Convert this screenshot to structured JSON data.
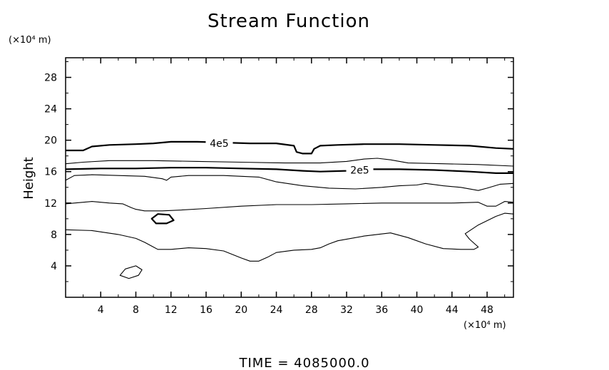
{
  "chart_data": {
    "type": "contour",
    "title": "Stream Function",
    "xlabel": "",
    "ylabel": "Height",
    "x_unit": "(×10⁴ m)",
    "y_unit": "(×10⁴ m)",
    "xlim": [
      0,
      51
    ],
    "ylim": [
      0,
      30.5
    ],
    "x_ticks": [
      4,
      8,
      12,
      16,
      20,
      24,
      28,
      32,
      36,
      40,
      44,
      48
    ],
    "y_ticks": [
      4,
      8,
      12,
      16,
      20,
      24,
      28
    ],
    "grid": false,
    "footer": "TIME  =  4085000.0",
    "contour_labels": [
      {
        "text": "4e5",
        "x": 17.5,
        "y": 19.6
      },
      {
        "text": "2e5",
        "x": 33.5,
        "y": 16.2
      }
    ],
    "contours": [
      {
        "name": "",
        "bold": true,
        "points": [
          [
            0,
            18.7
          ],
          [
            2,
            18.7
          ],
          [
            3,
            19.2
          ],
          [
            5,
            19.4
          ],
          [
            8,
            19.5
          ],
          [
            10,
            19.6
          ],
          [
            12,
            19.8
          ],
          [
            15,
            19.8
          ],
          [
            18,
            19.7
          ],
          [
            21,
            19.6
          ],
          [
            24,
            19.6
          ],
          [
            26,
            19.3
          ],
          [
            26.3,
            18.5
          ],
          [
            27,
            18.3
          ],
          [
            28,
            18.3
          ],
          [
            28.3,
            18.9
          ],
          [
            29,
            19.3
          ],
          [
            31,
            19.4
          ],
          [
            34,
            19.5
          ],
          [
            38,
            19.5
          ],
          [
            42,
            19.4
          ],
          [
            46,
            19.3
          ],
          [
            49,
            19.0
          ],
          [
            51,
            18.9
          ]
        ]
      },
      {
        "name": "",
        "bold": false,
        "points": [
          [
            0,
            17.0
          ],
          [
            2,
            17.2
          ],
          [
            5,
            17.4
          ],
          [
            10,
            17.4
          ],
          [
            15,
            17.3
          ],
          [
            20,
            17.2
          ],
          [
            25,
            17.1
          ],
          [
            29,
            17.1
          ],
          [
            32,
            17.3
          ],
          [
            34,
            17.6
          ],
          [
            35.5,
            17.7
          ],
          [
            37,
            17.5
          ],
          [
            39,
            17.1
          ],
          [
            43,
            17.0
          ],
          [
            47,
            16.9
          ],
          [
            51,
            16.7
          ]
        ]
      },
      {
        "name": "",
        "bold": true,
        "points": [
          [
            0,
            16.3
          ],
          [
            4,
            16.4
          ],
          [
            8,
            16.4
          ],
          [
            12,
            16.5
          ],
          [
            16,
            16.5
          ],
          [
            20,
            16.4
          ],
          [
            24,
            16.3
          ],
          [
            27,
            16.1
          ],
          [
            29,
            16.0
          ],
          [
            32,
            16.1
          ],
          [
            35,
            16.3
          ],
          [
            38,
            16.3
          ],
          [
            42,
            16.2
          ],
          [
            46,
            16.0
          ],
          [
            49,
            15.8
          ],
          [
            51,
            15.8
          ]
        ]
      },
      {
        "name": "",
        "bold": false,
        "points": [
          [
            0,
            14.9
          ],
          [
            1,
            15.5
          ],
          [
            3,
            15.6
          ],
          [
            6,
            15.5
          ],
          [
            9,
            15.4
          ],
          [
            11,
            15.1
          ],
          [
            11.5,
            14.9
          ],
          [
            12,
            15.3
          ],
          [
            14,
            15.5
          ],
          [
            18,
            15.5
          ],
          [
            22,
            15.3
          ],
          [
            24,
            14.7
          ],
          [
            27,
            14.2
          ],
          [
            30,
            13.9
          ],
          [
            33,
            13.8
          ],
          [
            36,
            14.0
          ],
          [
            38,
            14.2
          ],
          [
            40,
            14.3
          ],
          [
            41,
            14.5
          ],
          [
            43,
            14.2
          ],
          [
            45,
            14.0
          ],
          [
            47,
            13.6
          ],
          [
            48,
            13.9
          ],
          [
            49.5,
            14.4
          ],
          [
            51,
            14.5
          ]
        ]
      },
      {
        "name": "",
        "bold": false,
        "points": [
          [
            0,
            11.9
          ],
          [
            1,
            12.0
          ],
          [
            3,
            12.2
          ],
          [
            5,
            12.0
          ],
          [
            6.5,
            11.9
          ],
          [
            7.5,
            11.4
          ],
          [
            8,
            11.2
          ],
          [
            9,
            11.0
          ],
          [
            11,
            11.0
          ],
          [
            13,
            11.1
          ],
          [
            16,
            11.3
          ],
          [
            20,
            11.6
          ],
          [
            24,
            11.8
          ],
          [
            28,
            11.8
          ],
          [
            32,
            11.9
          ],
          [
            36,
            12.0
          ],
          [
            40,
            12.0
          ],
          [
            44,
            12.0
          ],
          [
            47,
            12.1
          ],
          [
            48,
            11.6
          ],
          [
            49,
            11.6
          ],
          [
            50,
            12.2
          ],
          [
            51,
            12.1
          ]
        ]
      },
      {
        "name": "",
        "bold": false,
        "points": [
          [
            0,
            8.6
          ],
          [
            3,
            8.5
          ],
          [
            6,
            8.0
          ],
          [
            8,
            7.5
          ],
          [
            9,
            7.0
          ],
          [
            10,
            6.4
          ],
          [
            10.5,
            6.1
          ],
          [
            12,
            6.1
          ],
          [
            14,
            6.3
          ],
          [
            16,
            6.2
          ],
          [
            18,
            5.9
          ],
          [
            20,
            5.0
          ],
          [
            21,
            4.6
          ],
          [
            22,
            4.6
          ],
          [
            23,
            5.1
          ],
          [
            24,
            5.7
          ],
          [
            26,
            6.0
          ],
          [
            28,
            6.1
          ],
          [
            29,
            6.3
          ],
          [
            30,
            6.8
          ],
          [
            31,
            7.2
          ],
          [
            34,
            7.8
          ],
          [
            37,
            8.2
          ],
          [
            39,
            7.6
          ],
          [
            41,
            6.8
          ],
          [
            43,
            6.2
          ],
          [
            45,
            6.1
          ],
          [
            46.5,
            6.1
          ],
          [
            47,
            6.4
          ],
          [
            46,
            7.4
          ],
          [
            45.5,
            8.1
          ],
          [
            47,
            9.2
          ],
          [
            49,
            10.3
          ],
          [
            50,
            10.7
          ],
          [
            51,
            10.6
          ]
        ]
      },
      {
        "name": "",
        "bold": true,
        "closed": true,
        "points": [
          [
            9.8,
            10.0
          ],
          [
            10.5,
            10.6
          ],
          [
            11.8,
            10.5
          ],
          [
            12.3,
            9.8
          ],
          [
            11.5,
            9.4
          ],
          [
            10.3,
            9.4
          ]
        ]
      },
      {
        "name": "",
        "bold": false,
        "closed": true,
        "points": [
          [
            6.2,
            2.8
          ],
          [
            6.8,
            3.6
          ],
          [
            8.0,
            4.0
          ],
          [
            8.7,
            3.5
          ],
          [
            8.3,
            2.8
          ],
          [
            7.2,
            2.4
          ]
        ]
      }
    ]
  }
}
